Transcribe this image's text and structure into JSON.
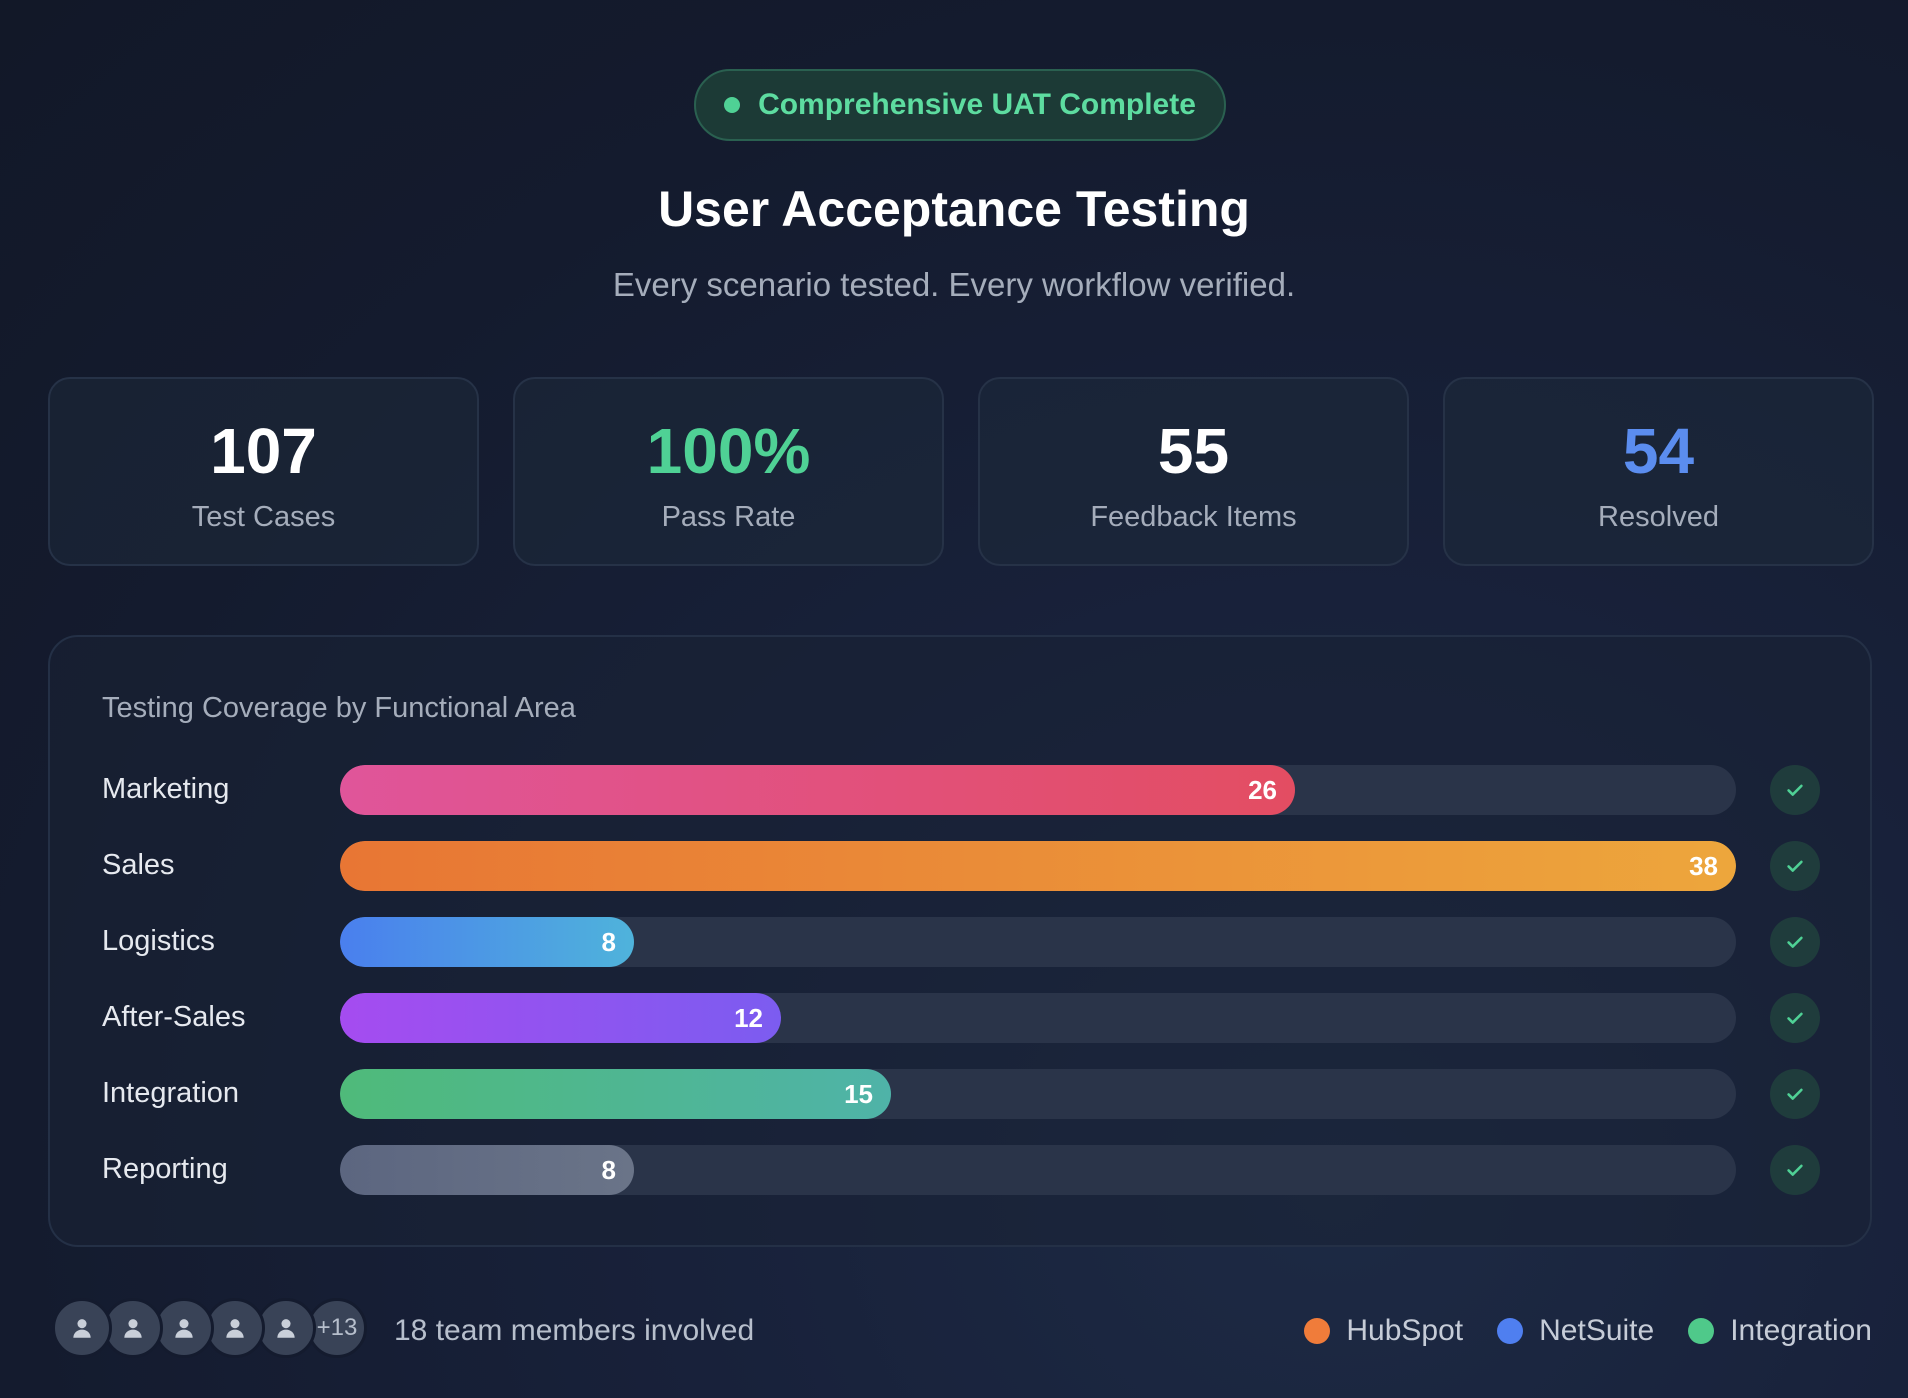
{
  "badge": {
    "text": "Comprehensive UAT Complete",
    "color": "#4fd195"
  },
  "header": {
    "title": "User Acceptance Testing",
    "subtitle": "Every scenario tested. Every workflow verified."
  },
  "stats": [
    {
      "value": "107",
      "label": "Test Cases",
      "color": "#ffffff"
    },
    {
      "value": "100%",
      "label": "Pass Rate",
      "color": "#4fd195"
    },
    {
      "value": "55",
      "label": "Feedback Items",
      "color": "#ffffff"
    },
    {
      "value": "54",
      "label": "Resolved",
      "color": "#5b8def"
    }
  ],
  "chart_data": {
    "type": "bar",
    "orientation": "horizontal",
    "title": "Testing Coverage by Functional Area",
    "categories": [
      "Marketing",
      "Sales",
      "Logistics",
      "After-Sales",
      "Integration",
      "Reporting"
    ],
    "values": [
      26,
      38,
      8,
      12,
      15,
      8
    ],
    "xlim": [
      0,
      38
    ],
    "bar_gradients": [
      [
        "#e0559a",
        "#e34d62"
      ],
      [
        "#e87634",
        "#eda63c"
      ],
      [
        "#4a7fee",
        "#4fb3db"
      ],
      [
        "#a54cf0",
        "#7c5cf0"
      ],
      [
        "#4fba7a",
        "#4fb3a8"
      ],
      [
        "#5c6680",
        "#6a7488"
      ]
    ],
    "status": [
      "complete",
      "complete",
      "complete",
      "complete",
      "complete",
      "complete"
    ],
    "status_icon": "check-icon",
    "legend": [
      {
        "label": "HubSpot",
        "color": "#f07c3a"
      },
      {
        "label": "NetSuite",
        "color": "#4f7ff0"
      },
      {
        "label": "Integration",
        "color": "#4fc98a"
      }
    ]
  },
  "team": {
    "avatar_icon": "user-icon",
    "avatar_count": 5,
    "more_label": "+13",
    "text": "18 team members involved"
  }
}
